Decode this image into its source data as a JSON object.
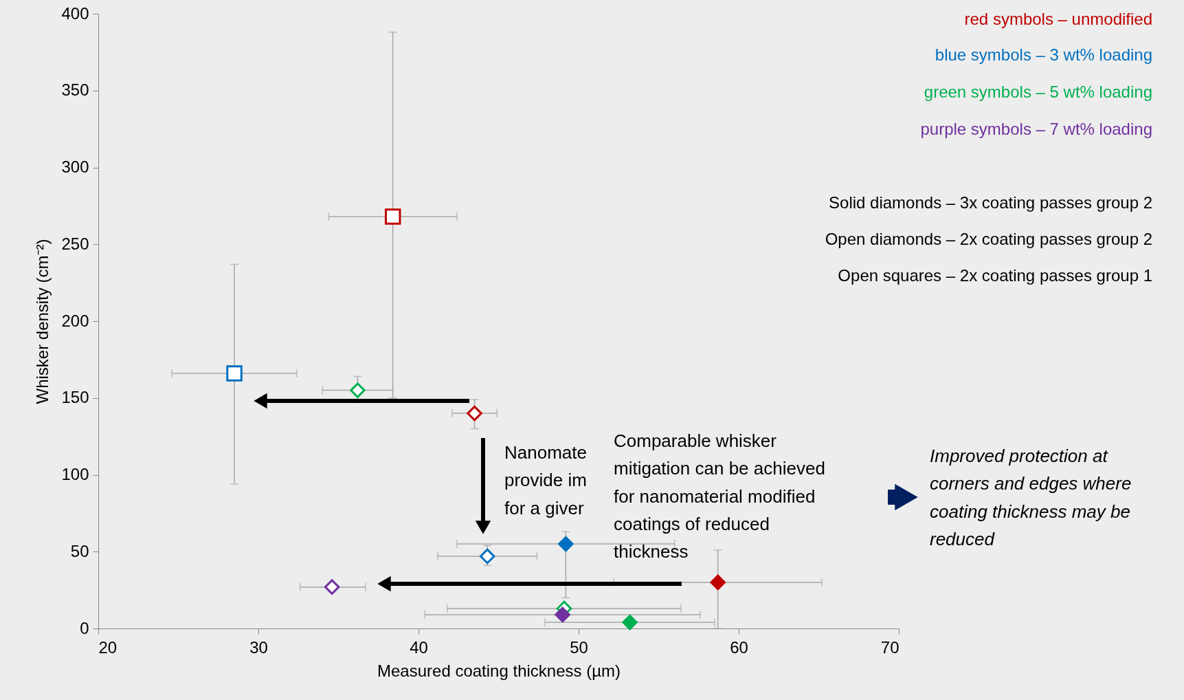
{
  "chart_data": {
    "type": "scatter",
    "xlabel": "Measured coating thickness (µm)",
    "ylabel": "Whisker density (cm⁻²)",
    "xlim": [
      20,
      70
    ],
    "xticks": [
      20,
      30,
      40,
      50,
      60,
      70
    ],
    "ylim": [
      0,
      400
    ],
    "yticks": [
      0,
      50,
      100,
      150,
      200,
      250,
      300,
      350,
      400
    ],
    "grid": false,
    "series": [
      {
        "color": "#c00000",
        "marker": "square",
        "x": [
          38.4
        ],
        "values": [
          268
        ],
        "errors": [
          [
            150,
            388
          ]
        ],
        "xerrors": [
          [
            34.4,
            42.4
          ]
        ]
      },
      {
        "color": "#0070c0",
        "marker": "square",
        "x": [
          28.5
        ],
        "values": [
          166
        ],
        "errors": [
          [
            94,
            237
          ]
        ],
        "xerrors": [
          [
            24.6,
            32.4
          ]
        ]
      },
      {
        "color": "#00b050",
        "marker": "diamond",
        "x": [
          36.2,
          49.1
        ],
        "values": [
          155,
          13
        ],
        "errors": [
          [
            147,
            164
          ],
          null
        ],
        "xerrors": [
          [
            34.0,
            38.4
          ],
          [
            41.8,
            56.4
          ]
        ]
      },
      {
        "color": "#c00000",
        "marker": "diamond",
        "x": [
          43.5
        ],
        "values": [
          140
        ],
        "errors": [
          [
            130,
            149
          ]
        ],
        "xerrors": [
          [
            42.1,
            44.9
          ]
        ]
      },
      {
        "color": "#0070c0",
        "marker": "diamond",
        "x": [
          44.3
        ],
        "values": [
          47
        ],
        "errors": [
          [
            41,
            54
          ]
        ],
        "xerrors": [
          [
            41.2,
            47.4
          ]
        ]
      },
      {
        "color": "#7030a0",
        "marker": "diamond",
        "x": [
          34.6
        ],
        "values": [
          27
        ],
        "errors": [
          null
        ],
        "xerrors": [
          [
            32.6,
            36.7
          ]
        ]
      },
      {
        "color": "#c00000",
        "marker": "diamond",
        "x": [
          58.7
        ],
        "values": [
          30
        ],
        "errors": [
          [
            0,
            51
          ]
        ],
        "xerrors": [
          [
            52.2,
            65.2
          ]
        ]
      },
      {
        "color": "#0070c0",
        "marker": "diamond",
        "x": [
          49.2
        ],
        "values": [
          55
        ],
        "errors": [
          [
            20,
            63
          ]
        ],
        "xerrors": [
          [
            42.4,
            56.0
          ]
        ]
      },
      {
        "color": "#00b050",
        "marker": "diamond",
        "x": [
          53.2
        ],
        "values": [
          4
        ],
        "errors": [
          null
        ],
        "xerrors": [
          [
            47.9,
            58.5
          ]
        ]
      },
      {
        "color": "#7030a0",
        "marker": "diamond",
        "x": [
          49.0
        ],
        "values": [
          9
        ],
        "errors": [
          null
        ],
        "xerrors": [
          [
            40.4,
            57.6
          ]
        ]
      }
    ],
    "annotations": [
      "red symbols – unmodified",
      "blue symbols – 3 wt% loading",
      "green symbols – 5 wt% loading",
      "purple symbols – 7 wt% loading",
      "Solid diamonds – 3x coating passes group 2",
      "Open diamonds – 2x coating passes group 2",
      "Open squares – 2x coating passes group 1",
      "Nanomate\nprovide im\nfor a giver",
      "Comparable whisker mitigation can be achieved for nanomaterial modified coatings of reduced thickness",
      "Improved protection at corners and edges where coating thickness may be reduced"
    ]
  }
}
